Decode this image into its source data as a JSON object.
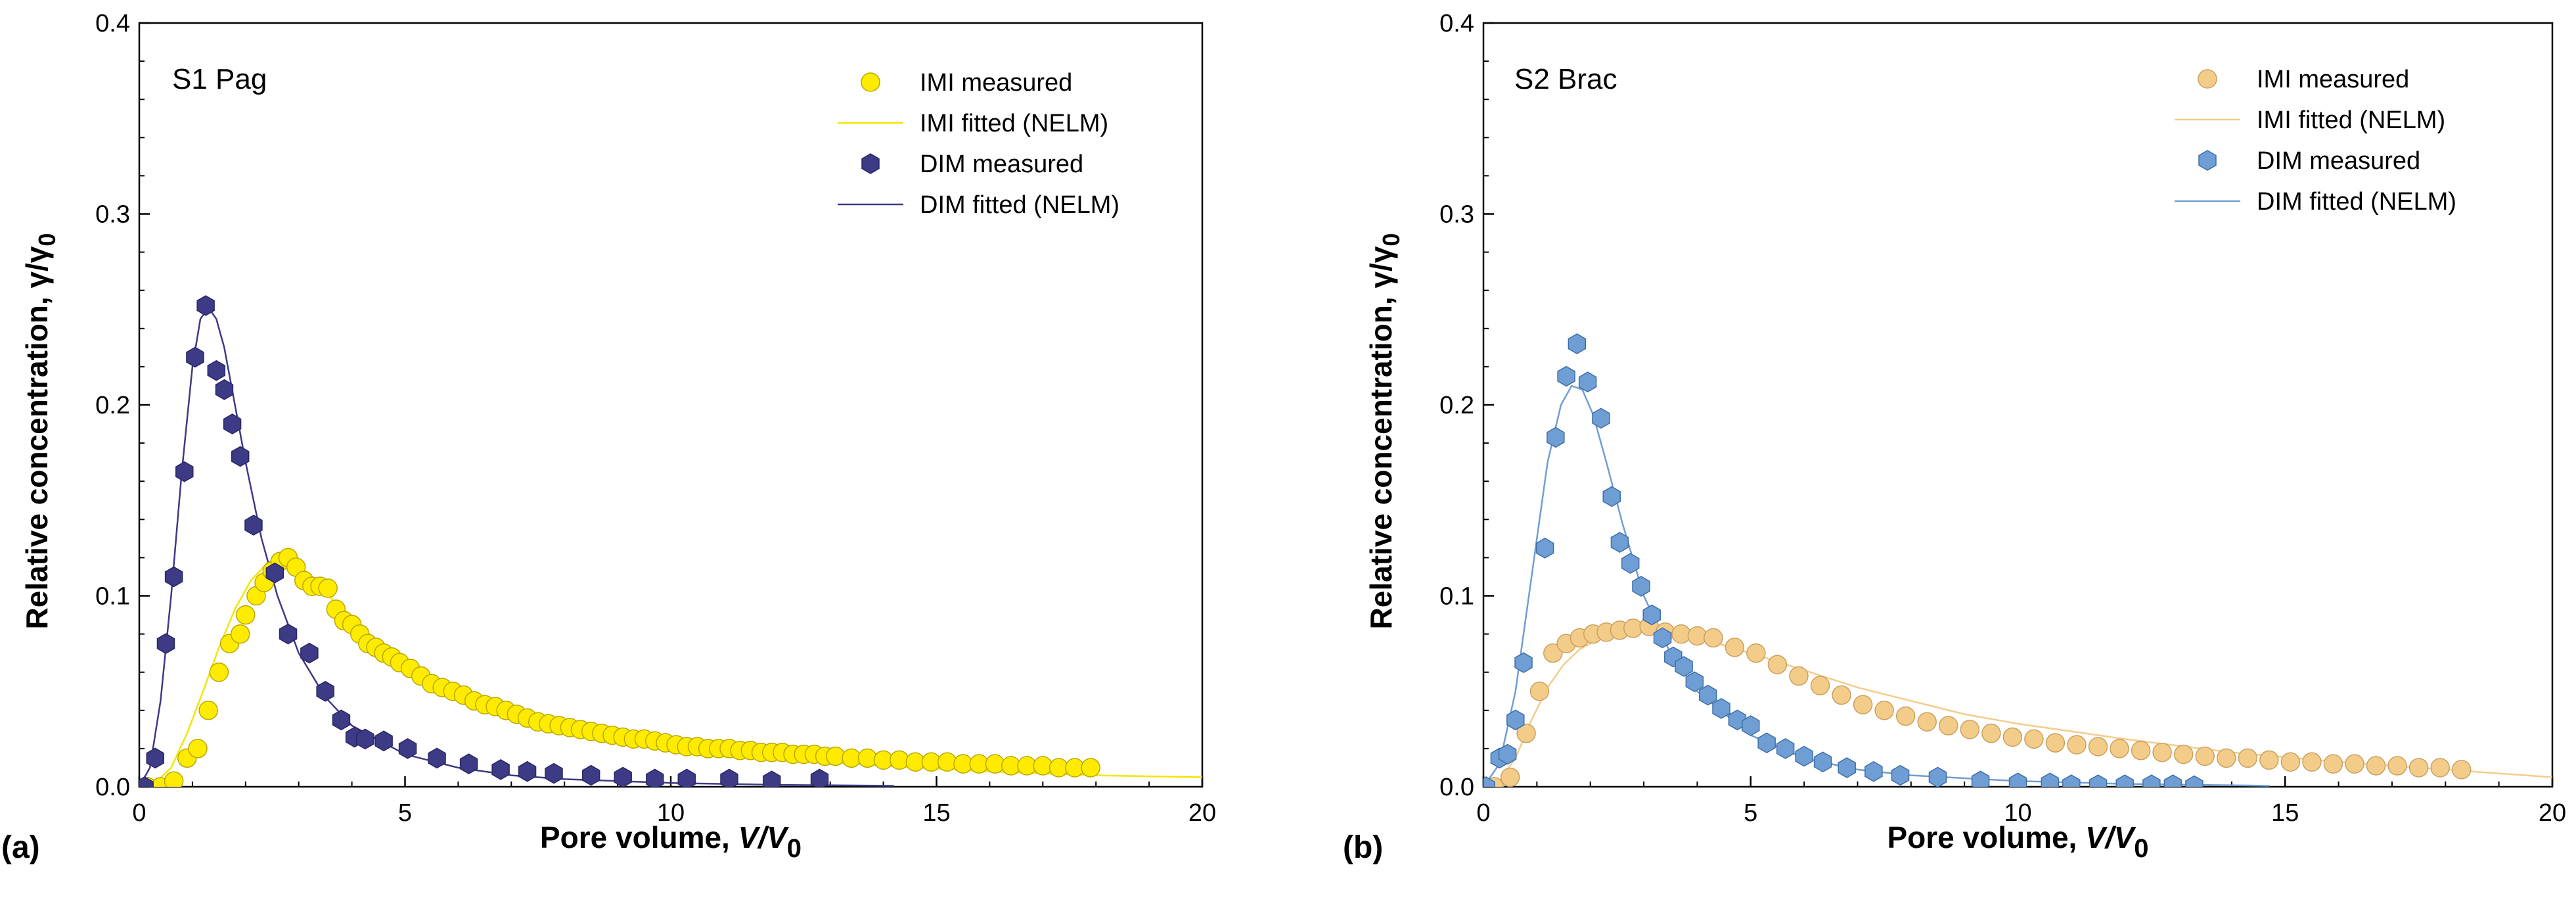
{
  "chart_data": [
    {
      "type": "scatter",
      "panel_label": "(a)",
      "title": "S1 Pag",
      "xlabel": "Pore volume, ",
      "xlabel_var": "V/V",
      "xlabel_sub": "0",
      "ylabel": "Relative concentration, γ/γ",
      "ylabel_sub": "0",
      "xlim": [
        0,
        20
      ],
      "ylim": [
        0,
        0.4
      ],
      "xticks": [
        "0",
        "5",
        "10",
        "15",
        "20"
      ],
      "yticks": [
        "0.0",
        "0.1",
        "0.2",
        "0.3",
        "0.4"
      ],
      "legend_position": "top-right",
      "series": [
        {
          "name": "IMI  measured",
          "kind": "points",
          "marker": "circle",
          "color": "#FFEB00",
          "stroke": "#B8A800",
          "x": [
            0.15,
            0.4,
            0.65,
            0.9,
            1.1,
            1.3,
            1.5,
            1.7,
            1.9,
            2.0,
            2.2,
            2.35,
            2.5,
            2.65,
            2.8,
            2.95,
            3.1,
            3.25,
            3.4,
            3.55,
            3.7,
            3.85,
            4.0,
            4.15,
            4.3,
            4.45,
            4.6,
            4.75,
            4.9,
            5.1,
            5.3,
            5.5,
            5.7,
            5.9,
            6.1,
            6.3,
            6.5,
            6.7,
            6.9,
            7.1,
            7.3,
            7.5,
            7.7,
            7.9,
            8.1,
            8.3,
            8.5,
            8.7,
            8.9,
            9.1,
            9.3,
            9.5,
            9.7,
            9.9,
            10.1,
            10.3,
            10.5,
            10.7,
            10.9,
            11.1,
            11.3,
            11.5,
            11.7,
            11.9,
            12.1,
            12.3,
            12.5,
            12.7,
            12.9,
            13.1,
            13.4,
            13.7,
            14.0,
            14.3,
            14.6,
            14.9,
            15.2,
            15.5,
            15.8,
            16.1,
            16.4,
            16.7,
            17.0,
            17.3,
            17.6,
            17.9
          ],
          "y": [
            0.0,
            0.0,
            0.003,
            0.015,
            0.02,
            0.04,
            0.06,
            0.075,
            0.08,
            0.09,
            0.1,
            0.107,
            0.113,
            0.118,
            0.12,
            0.115,
            0.108,
            0.105,
            0.105,
            0.104,
            0.093,
            0.087,
            0.085,
            0.08,
            0.075,
            0.073,
            0.07,
            0.068,
            0.065,
            0.062,
            0.058,
            0.054,
            0.052,
            0.05,
            0.048,
            0.045,
            0.043,
            0.042,
            0.04,
            0.038,
            0.036,
            0.034,
            0.033,
            0.032,
            0.031,
            0.03,
            0.029,
            0.028,
            0.027,
            0.026,
            0.025,
            0.025,
            0.024,
            0.023,
            0.022,
            0.021,
            0.021,
            0.02,
            0.02,
            0.02,
            0.019,
            0.019,
            0.018,
            0.018,
            0.018,
            0.017,
            0.017,
            0.017,
            0.016,
            0.016,
            0.015,
            0.015,
            0.014,
            0.014,
            0.013,
            0.013,
            0.013,
            0.012,
            0.012,
            0.012,
            0.011,
            0.011,
            0.011,
            0.01,
            0.01,
            0.01
          ]
        },
        {
          "name": "IMI  fitted (NELM)",
          "kind": "line",
          "color": "#F2E600",
          "x": [
            0,
            0.3,
            0.6,
            0.9,
            1.2,
            1.5,
            1.8,
            2.1,
            2.4,
            2.6,
            2.8,
            3.0,
            3.3,
            3.6,
            4.0,
            4.5,
            5.0,
            6.0,
            7.0,
            8.0,
            9.0,
            10.0,
            12.0,
            14.0,
            16.0,
            18.0,
            20.0
          ],
          "y": [
            0,
            0.002,
            0.01,
            0.028,
            0.05,
            0.073,
            0.093,
            0.108,
            0.117,
            0.12,
            0.119,
            0.115,
            0.107,
            0.099,
            0.088,
            0.076,
            0.066,
            0.05,
            0.039,
            0.031,
            0.025,
            0.021,
            0.015,
            0.011,
            0.008,
            0.006,
            0.005
          ]
        },
        {
          "name": "DIM measured",
          "kind": "points",
          "marker": "hexagon",
          "color": "#3D3A86",
          "stroke": "#2A2766",
          "x": [
            0.1,
            0.3,
            0.5,
            0.65,
            0.85,
            1.05,
            1.25,
            1.45,
            1.6,
            1.75,
            1.9,
            2.15,
            2.55,
            2.8,
            3.2,
            3.5,
            3.8,
            4.05,
            4.25,
            4.6,
            5.05,
            5.6,
            6.2,
            6.8,
            7.3,
            7.8,
            8.5,
            9.1,
            9.7,
            10.3,
            11.1,
            11.9,
            12.8
          ],
          "y": [
            0.0,
            0.015,
            0.075,
            0.11,
            0.165,
            0.225,
            0.252,
            0.218,
            0.208,
            0.19,
            0.173,
            0.137,
            0.112,
            0.08,
            0.07,
            0.05,
            0.035,
            0.026,
            0.025,
            0.024,
            0.02,
            0.015,
            0.012,
            0.009,
            0.008,
            0.007,
            0.006,
            0.005,
            0.004,
            0.004,
            0.004,
            0.003,
            0.004
          ]
        },
        {
          "name": "DIM fitted (NELM)",
          "kind": "line",
          "color": "#3D3A86",
          "x": [
            0,
            0.2,
            0.4,
            0.6,
            0.8,
            1.0,
            1.15,
            1.3,
            1.45,
            1.6,
            1.8,
            2.0,
            2.3,
            2.6,
            3.0,
            3.5,
            4.0,
            5.0,
            6.0,
            7.0,
            8.0,
            10.0,
            12.0,
            14.2
          ],
          "y": [
            0,
            0.01,
            0.045,
            0.1,
            0.165,
            0.22,
            0.245,
            0.251,
            0.245,
            0.23,
            0.2,
            0.17,
            0.13,
            0.1,
            0.07,
            0.047,
            0.032,
            0.017,
            0.01,
            0.006,
            0.004,
            0.002,
            0.001,
            0.0005
          ]
        }
      ]
    },
    {
      "type": "scatter",
      "panel_label": "(b)",
      "title": "S2 Brac",
      "xlabel": "Pore volume, ",
      "xlabel_var": "V/V",
      "xlabel_sub": "0",
      "ylabel": "Relative concentration, γ/γ",
      "ylabel_sub": "0",
      "xlim": [
        0,
        20
      ],
      "ylim": [
        0,
        0.4
      ],
      "xticks": [
        "0",
        "5",
        "10",
        "15",
        "20"
      ],
      "yticks": [
        "0.0",
        "0.1",
        "0.2",
        "0.3",
        "0.4"
      ],
      "legend_position": "top-right",
      "series": [
        {
          "name": "IMI measured",
          "kind": "points",
          "marker": "circle",
          "color": "#F4CC8A",
          "stroke": "#C9A060",
          "x": [
            0.2,
            0.5,
            0.8,
            1.05,
            1.3,
            1.55,
            1.8,
            2.05,
            2.3,
            2.55,
            2.8,
            3.1,
            3.4,
            3.7,
            4.0,
            4.3,
            4.7,
            5.1,
            5.5,
            5.9,
            6.3,
            6.7,
            7.1,
            7.5,
            7.9,
            8.3,
            8.7,
            9.1,
            9.5,
            9.9,
            10.3,
            10.7,
            11.1,
            11.5,
            11.9,
            12.3,
            12.7,
            13.1,
            13.5,
            13.9,
            14.3,
            14.7,
            15.1,
            15.5,
            15.9,
            16.3,
            16.7,
            17.1,
            17.5,
            17.9,
            18.3
          ],
          "y": [
            0.0,
            0.005,
            0.028,
            0.05,
            0.07,
            0.075,
            0.078,
            0.08,
            0.081,
            0.082,
            0.083,
            0.084,
            0.081,
            0.08,
            0.079,
            0.078,
            0.073,
            0.07,
            0.064,
            0.058,
            0.053,
            0.048,
            0.043,
            0.04,
            0.037,
            0.034,
            0.032,
            0.03,
            0.028,
            0.026,
            0.025,
            0.023,
            0.022,
            0.021,
            0.02,
            0.019,
            0.018,
            0.017,
            0.016,
            0.015,
            0.015,
            0.014,
            0.013,
            0.013,
            0.012,
            0.012,
            0.011,
            0.011,
            0.01,
            0.01,
            0.009
          ]
        },
        {
          "name": "IMI fitted (NELM)",
          "kind": "line",
          "color": "#F4CC8A",
          "x": [
            0,
            0.3,
            0.6,
            0.9,
            1.2,
            1.5,
            1.8,
            2.2,
            2.6,
            3.0,
            3.5,
            4.0,
            4.5,
            5.0,
            6.0,
            7.0,
            8.0,
            9.0,
            10.0,
            12.0,
            14.0,
            16.0,
            18.0,
            20.0
          ],
          "y": [
            0,
            0.003,
            0.015,
            0.035,
            0.052,
            0.064,
            0.072,
            0.078,
            0.081,
            0.082,
            0.081,
            0.078,
            0.074,
            0.07,
            0.061,
            0.052,
            0.045,
            0.038,
            0.033,
            0.025,
            0.018,
            0.013,
            0.009,
            0.005
          ]
        },
        {
          "name": "DIM measured",
          "kind": "points",
          "marker": "hexagon",
          "color": "#6F9ED4",
          "stroke": "#3E6FA8",
          "x": [
            0.05,
            0.3,
            0.45,
            0.6,
            0.75,
            1.15,
            1.35,
            1.55,
            1.75,
            1.95,
            2.2,
            2.4,
            2.55,
            2.75,
            2.95,
            3.15,
            3.35,
            3.55,
            3.75,
            3.95,
            4.2,
            4.45,
            4.75,
            5.0,
            5.3,
            5.65,
            6.0,
            6.35,
            6.8,
            7.3,
            7.8,
            8.5,
            9.3,
            10.0,
            10.6,
            11.0,
            11.5,
            12.0,
            12.5,
            12.9,
            13.3
          ],
          "y": [
            0.0,
            0.015,
            0.017,
            0.035,
            0.065,
            0.125,
            0.183,
            0.215,
            0.232,
            0.212,
            0.193,
            0.152,
            0.128,
            0.117,
            0.105,
            0.09,
            0.078,
            0.068,
            0.063,
            0.055,
            0.048,
            0.041,
            0.035,
            0.032,
            0.023,
            0.02,
            0.016,
            0.013,
            0.01,
            0.008,
            0.006,
            0.005,
            0.003,
            0.002,
            0.002,
            0.001,
            0.001,
            0.001,
            0.001,
            0.001,
            0.0005
          ]
        },
        {
          "name": "DIM fitted (NELM)",
          "kind": "line",
          "color": "#6F9ED4",
          "x": [
            0,
            0.3,
            0.6,
            0.9,
            1.2,
            1.45,
            1.65,
            1.85,
            2.05,
            2.3,
            2.6,
            3.0,
            3.5,
            4.0,
            5.0,
            6.0,
            7.0,
            8.0,
            10.0,
            12.0,
            14.7
          ],
          "y": [
            0,
            0.012,
            0.05,
            0.11,
            0.17,
            0.2,
            0.21,
            0.208,
            0.195,
            0.17,
            0.138,
            0.1,
            0.07,
            0.05,
            0.027,
            0.015,
            0.009,
            0.006,
            0.003,
            0.0015,
            0.0005
          ]
        }
      ]
    }
  ]
}
